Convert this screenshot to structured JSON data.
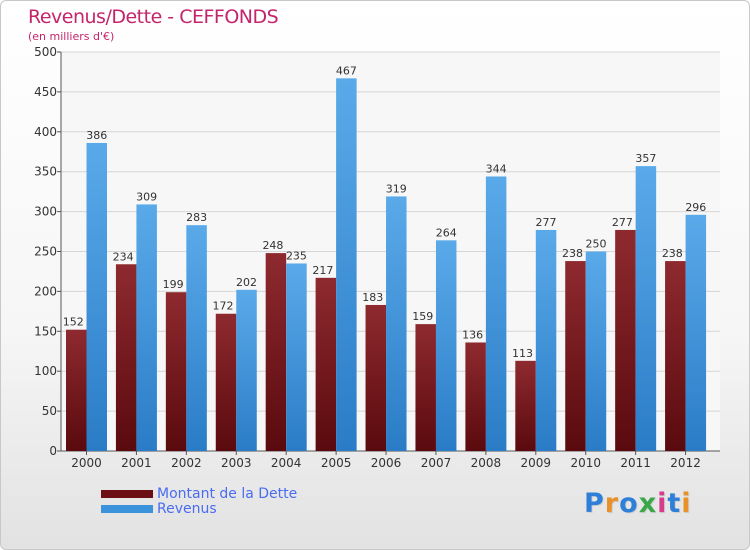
{
  "title": "Revenus/Dette - CEFFONDS",
  "subtitle": "(en milliers d'€)",
  "logo_text": "Proxiti",
  "legend": {
    "items": [
      {
        "label": "Montant de la Dette",
        "color": "#6b0f14"
      },
      {
        "label": "Revenus",
        "color": "#3b93db"
      }
    ]
  },
  "chart_data": {
    "type": "bar",
    "title": "Revenus/Dette - CEFFONDS",
    "subtitle": "(en milliers d'€)",
    "categories": [
      "2000",
      "2001",
      "2002",
      "2003",
      "2004",
      "2005",
      "2006",
      "2007",
      "2008",
      "2009",
      "2010",
      "2011",
      "2012"
    ],
    "series": [
      {
        "name": "Montant de la Dette",
        "color": "#6b0f14",
        "values": [
          152,
          234,
          199,
          172,
          248,
          217,
          183,
          159,
          136,
          113,
          238,
          277,
          238
        ]
      },
      {
        "name": "Revenus",
        "color": "#3b93db",
        "values": [
          386,
          309,
          283,
          202,
          235,
          467,
          319,
          264,
          344,
          277,
          250,
          357,
          296
        ]
      }
    ],
    "ylim": [
      0,
      500
    ],
    "yticks": [
      0,
      50,
      100,
      150,
      200,
      250,
      300,
      350,
      400,
      450,
      500
    ],
    "grid": true,
    "legend_position": "bottom-left"
  }
}
